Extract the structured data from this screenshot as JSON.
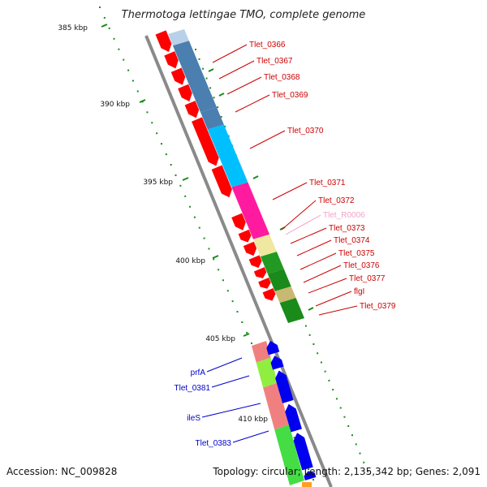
{
  "header": {
    "title": "Thermotoga lettingae TMO, complete genome"
  },
  "footer": {
    "accession": "Accession: NC_009828",
    "summary": "Topology: circular; Length: 2,135,342 bp; Genes: 2,091"
  },
  "ruler": {
    "ticks": [
      {
        "label": "385 kbp",
        "kbp": 385
      },
      {
        "label": "390 kbp",
        "kbp": 390
      },
      {
        "label": "395 kbp",
        "kbp": 395
      },
      {
        "label": "400 kbp",
        "kbp": 400
      },
      {
        "label": "405 kbp",
        "kbp": 405
      },
      {
        "label": "410 kbp",
        "kbp": 410
      }
    ]
  },
  "genes": {
    "forward": [
      {
        "label": "Tlet_0366",
        "color": "#cc0000"
      },
      {
        "label": "Tlet_0367",
        "color": "#cc0000"
      },
      {
        "label": "Tlet_0368",
        "color": "#cc0000"
      },
      {
        "label": "Tlet_0369",
        "color": "#cc0000"
      },
      {
        "label": "Tlet_0370",
        "color": "#cc0000"
      },
      {
        "label": "Tlet_0371",
        "color": "#cc0000"
      },
      {
        "label": "Tlet_0372",
        "color": "#cc0000"
      },
      {
        "label": "Tlet_R0006",
        "color": "#f4a0c8"
      },
      {
        "label": "Tlet_0373",
        "color": "#cc0000"
      },
      {
        "label": "Tlet_0374",
        "color": "#cc0000"
      },
      {
        "label": "Tlet_0375",
        "color": "#cc0000"
      },
      {
        "label": "Tlet_0376",
        "color": "#cc0000"
      },
      {
        "label": "Tlet_0377",
        "color": "#cc0000"
      },
      {
        "label": "flgI",
        "color": "#cc0000"
      },
      {
        "label": "Tlet_0379",
        "color": "#cc0000"
      }
    ],
    "reverse": [
      {
        "label": "prfA",
        "color": "#0000cc"
      },
      {
        "label": "Tlet_0381",
        "color": "#0000cc"
      },
      {
        "label": "ileS",
        "color": "#0000cc"
      },
      {
        "label": "Tlet_0383",
        "color": "#0000cc"
      }
    ]
  },
  "colors": {
    "backbone": "#8a8a8a",
    "forward_arrow": "#ff0000",
    "reverse_arrow": "#0000ee",
    "ruler_tick": "#1a8a1a",
    "cog_blue": "#4a7fb0",
    "cog_light_blue": "#b8d0e8",
    "cog_cyan": "#00bfff",
    "cog_magenta": "#ff1aa0",
    "cog_pale_yellow": "#f0e8a0",
    "cog_green": "#229922",
    "cog_dark_green": "#1a8a1a",
    "cog_tan": "#c8b870",
    "cog_salmon": "#f08080",
    "cog_lime": "#90ee40",
    "cog_bright_green": "#44dd44",
    "cog_orange": "#ffa020"
  }
}
